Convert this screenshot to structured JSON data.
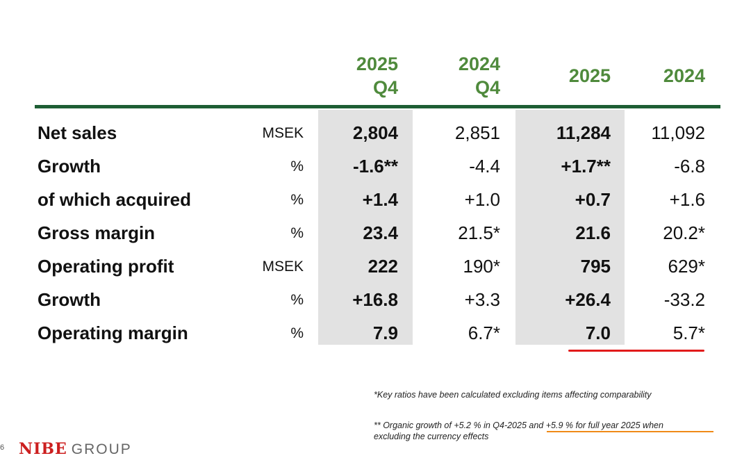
{
  "header": {
    "columns": [
      {
        "year": "2025",
        "period": "Q4"
      },
      {
        "year": "2024",
        "period": "Q4"
      },
      {
        "year": "2025",
        "period": ""
      },
      {
        "year": "2024",
        "period": ""
      }
    ]
  },
  "rows": [
    {
      "label": "Net sales",
      "unit": "MSEK",
      "values": [
        "2,804",
        "2,851",
        "11,284",
        "11,092"
      ]
    },
    {
      "label": "Growth",
      "unit": "%",
      "values": [
        "-1.6**",
        "-4.4",
        "+1.7**",
        "-6.8"
      ]
    },
    {
      "label": "of which acquired",
      "unit": "%",
      "values": [
        "+1.4",
        "+1.0",
        "+0.7",
        "+1.6"
      ]
    },
    {
      "label": "Gross margin",
      "unit": "%",
      "values": [
        "23.4",
        "21.5*",
        "21.6",
        "20.2*"
      ]
    },
    {
      "label": "Operating profit",
      "unit": "MSEK",
      "values": [
        "222",
        "190*",
        "795",
        "629*"
      ]
    },
    {
      "label": "Growth",
      "unit": "%",
      "values": [
        "+16.8",
        "+3.3",
        "+26.4",
        "-33.2"
      ]
    },
    {
      "label": "Operating margin",
      "unit": "%",
      "values": [
        "7.9",
        "6.7*",
        "7.0",
        "5.7*"
      ]
    }
  ],
  "notes": {
    "note1": "*Key ratios have been calculated excluding items affecting comparability",
    "note2_line1": "** Organic growth of +5.2 % in Q4-2025 and +5.9 % for full year 2025 when",
    "note2_line2": "excluding the currency effects"
  },
  "footer": {
    "page_number": "6",
    "brand": "NIBE",
    "group": "GROUP"
  },
  "colors": {
    "header_green": "#4f8a3c",
    "rule_green": "#1e5e34",
    "highlight_red": "#e21b1b",
    "highlight_orange": "#f08a17",
    "brand_red": "#cc1f1f"
  }
}
